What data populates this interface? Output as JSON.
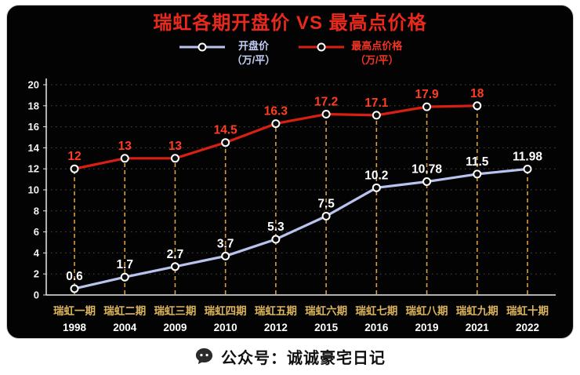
{
  "title": "瑞虹各期开盘价 VS 最高点价格",
  "colors": {
    "title": "#e8291c",
    "panel_background": "#030303",
    "footer_text": "#111111"
  },
  "legend": [
    {
      "label": "开盘价",
      "sublabel": "（万/平）",
      "color": "#c3cdf3"
    },
    {
      "label": "最高点价格",
      "sublabel": "（万/平）",
      "color": "#ef3526"
    }
  ],
  "footer": {
    "icon": "speech-bubble-icon",
    "text": "公众号：诚诚豪宅日记"
  },
  "chart_data": {
    "type": "line",
    "title": "瑞虹各期开盘价 VS 最高点价格",
    "legend_position": "top",
    "grid": true,
    "ylim": [
      0,
      20
    ],
    "ytick_step": 2,
    "categories": [
      {
        "name": "瑞虹一期",
        "year": "1998"
      },
      {
        "name": "瑞虹二期",
        "year": "2004"
      },
      {
        "name": "瑞虹三期",
        "year": "2009"
      },
      {
        "name": "瑞虹四期",
        "year": "2010"
      },
      {
        "name": "瑞虹五期",
        "year": "2012"
      },
      {
        "name": "瑞虹六期",
        "year": "2015"
      },
      {
        "name": "瑞虹七期",
        "year": "2016"
      },
      {
        "name": "瑞虹八期",
        "year": "2019"
      },
      {
        "name": "瑞虹九期",
        "year": "2021"
      },
      {
        "name": "瑞虹十期",
        "year": "2022"
      }
    ],
    "series": [
      {
        "name": "开盘价",
        "unit": "万/平",
        "color": "#b9c4ee",
        "label_color": "#ffffff",
        "values": [
          0.6,
          1.7,
          2.7,
          3.7,
          5.3,
          7.5,
          10.2,
          10.78,
          11.5,
          11.98
        ]
      },
      {
        "name": "最高点价格",
        "unit": "万/平",
        "color": "#d81f12",
        "label_color": "#ff3d22",
        "values": [
          12,
          13,
          13,
          14.5,
          16.3,
          17.2,
          17.1,
          17.9,
          18,
          null
        ]
      }
    ],
    "colors": {
      "grid": "#4d4d4d",
      "axis": "#eaeaea",
      "tick_text": "#f2f2f2",
      "guide": "#dd9e3e",
      "category": "#dcb45e",
      "year": "#ffffff"
    }
  }
}
